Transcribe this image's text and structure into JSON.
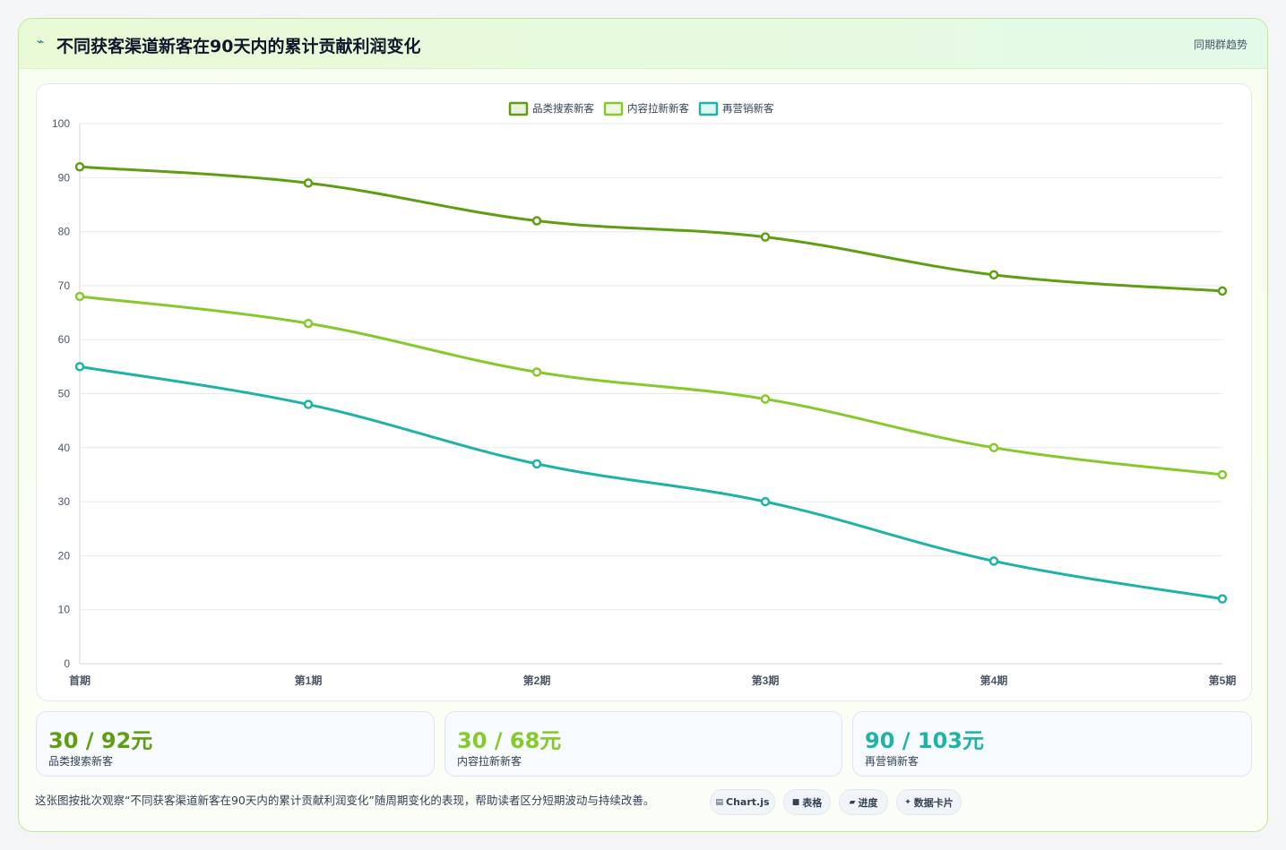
{
  "header": {
    "title": "不同获客渠道新客在90天内的累计贡献利润变化",
    "tag": "同期群趋势",
    "icon": "spark-icon"
  },
  "colors": {
    "series1": "#5f9e12",
    "series2": "#86c92a",
    "series3": "#1eb3a6",
    "grid": "#e5e9ef",
    "axis_text": "#4b5563"
  },
  "chart_data": {
    "type": "line",
    "categories": [
      "首期",
      "第1期",
      "第2期",
      "第3期",
      "第4期",
      "第5期"
    ],
    "ylim": [
      0,
      100
    ],
    "yticks": [
      0,
      10,
      20,
      30,
      40,
      50,
      60,
      70,
      80,
      90,
      100
    ],
    "grid": true,
    "legend": "top-center",
    "series": [
      {
        "name": "品类搜索新客",
        "values": [
          92,
          89,
          82,
          79,
          72,
          69
        ]
      },
      {
        "name": "内容拉新新客",
        "values": [
          68,
          63,
          54,
          49,
          40,
          35
        ]
      },
      {
        "name": "再营销新客",
        "values": [
          55,
          48,
          37,
          30,
          19,
          12
        ]
      }
    ]
  },
  "kpis": [
    {
      "value": "30 / 92元",
      "label": "品类搜索新客"
    },
    {
      "value": "30 / 68元",
      "label": "内容拉新新客"
    },
    {
      "value": "90 / 103元",
      "label": "再营销新客"
    }
  ],
  "footer": {
    "note": "这张图按批次观察“不同获客渠道新客在90天内的累计贡献利润变化”随周期变化的表现，帮助读者区分短期波动与持续改善。",
    "chips": [
      {
        "icon": "chart-icon",
        "glyph": "▤",
        "label": "Chart.js"
      },
      {
        "icon": "table-icon",
        "glyph": "■",
        "label": "表格"
      },
      {
        "icon": "progress-icon",
        "glyph": "▰",
        "label": "进度"
      },
      {
        "icon": "sparkle-icon",
        "glyph": "✦",
        "label": "数据卡片"
      }
    ]
  }
}
